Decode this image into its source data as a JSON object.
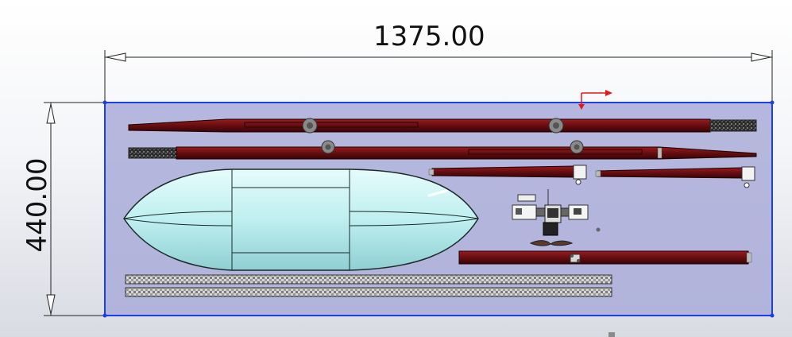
{
  "dimensions": {
    "width_value": "1375.00",
    "height_value": "440.00"
  },
  "colors": {
    "sketch_line": "#1a3ee8",
    "sketch_fill": "#a9acd8",
    "tube": "#6b0f12",
    "hull": "#bfeff0",
    "foam_strip": "#8c8c8c",
    "axis_red": "#e8151a"
  },
  "icons": {
    "origin": "coordinate-origin-icon",
    "triad": "red-arrow-triad-icon"
  }
}
